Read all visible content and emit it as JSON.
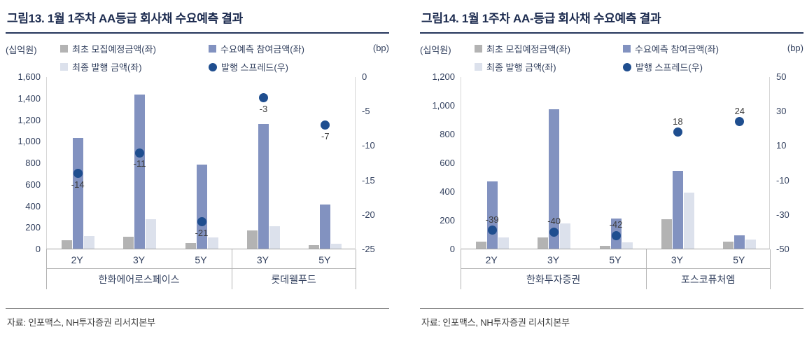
{
  "colors": {
    "title_text": "#1b2a4e",
    "axis_text": "#33415f",
    "bar_initial": "#b3b3b3",
    "bar_demand": "#8292c0",
    "bar_final": "#dce1ec",
    "spread_dot": "#1f4e8f"
  },
  "chart_data": [
    {
      "type": "bar",
      "title": "그림13. 1월 1주차 AA등급 회사채 수요예측 결과",
      "unit_left": "(십억원)",
      "unit_right": "(bp)",
      "legend_position": "top",
      "grid": false,
      "categories": [
        "2Y",
        "3Y",
        "5Y",
        "3Y",
        "5Y"
      ],
      "groups": [
        {
          "label": "한화에어로스페이스",
          "count": 3
        },
        {
          "label": "롯데웰푸드",
          "count": 2
        }
      ],
      "bar_series": [
        {
          "name": "최초 모집예정금액(좌)",
          "color": "#b3b3b3",
          "values": [
            80,
            110,
            55,
            170,
            30
          ]
        },
        {
          "name": "수요예측 참여금액(좌)",
          "color": "#8292c0",
          "values": [
            1030,
            1430,
            780,
            1160,
            410
          ]
        },
        {
          "name": "최종 발행 금액(좌)",
          "color": "#dce1ec",
          "values": [
            115,
            270,
            105,
            205,
            45
          ]
        }
      ],
      "point_series": {
        "name": "발행 스프레드(우)",
        "color": "#1f4e8f",
        "axis": "right",
        "values": [
          -14,
          -11,
          -21,
          -3,
          -7
        ],
        "label_position": "below"
      },
      "ylim_left": [
        0,
        1600
      ],
      "yticks_left": [
        "1,600",
        "1,400",
        "1,200",
        "1,000",
        "800",
        "600",
        "400",
        "200",
        "0"
      ],
      "ylim_right": [
        -25,
        0
      ],
      "yticks_right": [
        "0",
        "-5",
        "-10",
        "-15",
        "-20",
        "-25"
      ],
      "source": "자료: 인포맥스, NH투자증권 리서치본부"
    },
    {
      "type": "bar",
      "title": "그림14. 1월 1주차 AA-등급 회사채 수요예측 결과",
      "unit_left": "(십억원)",
      "unit_right": "(bp)",
      "legend_position": "top",
      "grid": false,
      "categories": [
        "2Y",
        "3Y",
        "5Y",
        "3Y",
        "5Y"
      ],
      "groups": [
        {
          "label": "한화투자증권",
          "count": 3
        },
        {
          "label": "포스코퓨처엠",
          "count": 2
        }
      ],
      "bar_series": [
        {
          "name": "최초 모집예정금액(좌)",
          "color": "#b3b3b3",
          "values": [
            50,
            80,
            20,
            205,
            50
          ]
        },
        {
          "name": "수요예측 참여금액(좌)",
          "color": "#8292c0",
          "values": [
            470,
            970,
            210,
            540,
            95
          ]
        },
        {
          "name": "최종 발행 금액(좌)",
          "color": "#dce1ec",
          "values": [
            80,
            175,
            45,
            390,
            65
          ]
        }
      ],
      "point_series": {
        "name": "발행 스프레드(우)",
        "color": "#1f4e8f",
        "axis": "right",
        "values": [
          -39,
          -40,
          -42,
          18,
          24
        ],
        "label_position": "above"
      },
      "ylim_left": [
        0,
        1200
      ],
      "yticks_left": [
        "1,200",
        "1,000",
        "800",
        "600",
        "400",
        "200",
        "0"
      ],
      "ylim_right": [
        -50,
        50
      ],
      "yticks_right": [
        "50",
        "30",
        "10",
        "-10",
        "-30",
        "-50"
      ],
      "source": "자료: 인포맥스, NH투자증권 리서치본부"
    }
  ]
}
